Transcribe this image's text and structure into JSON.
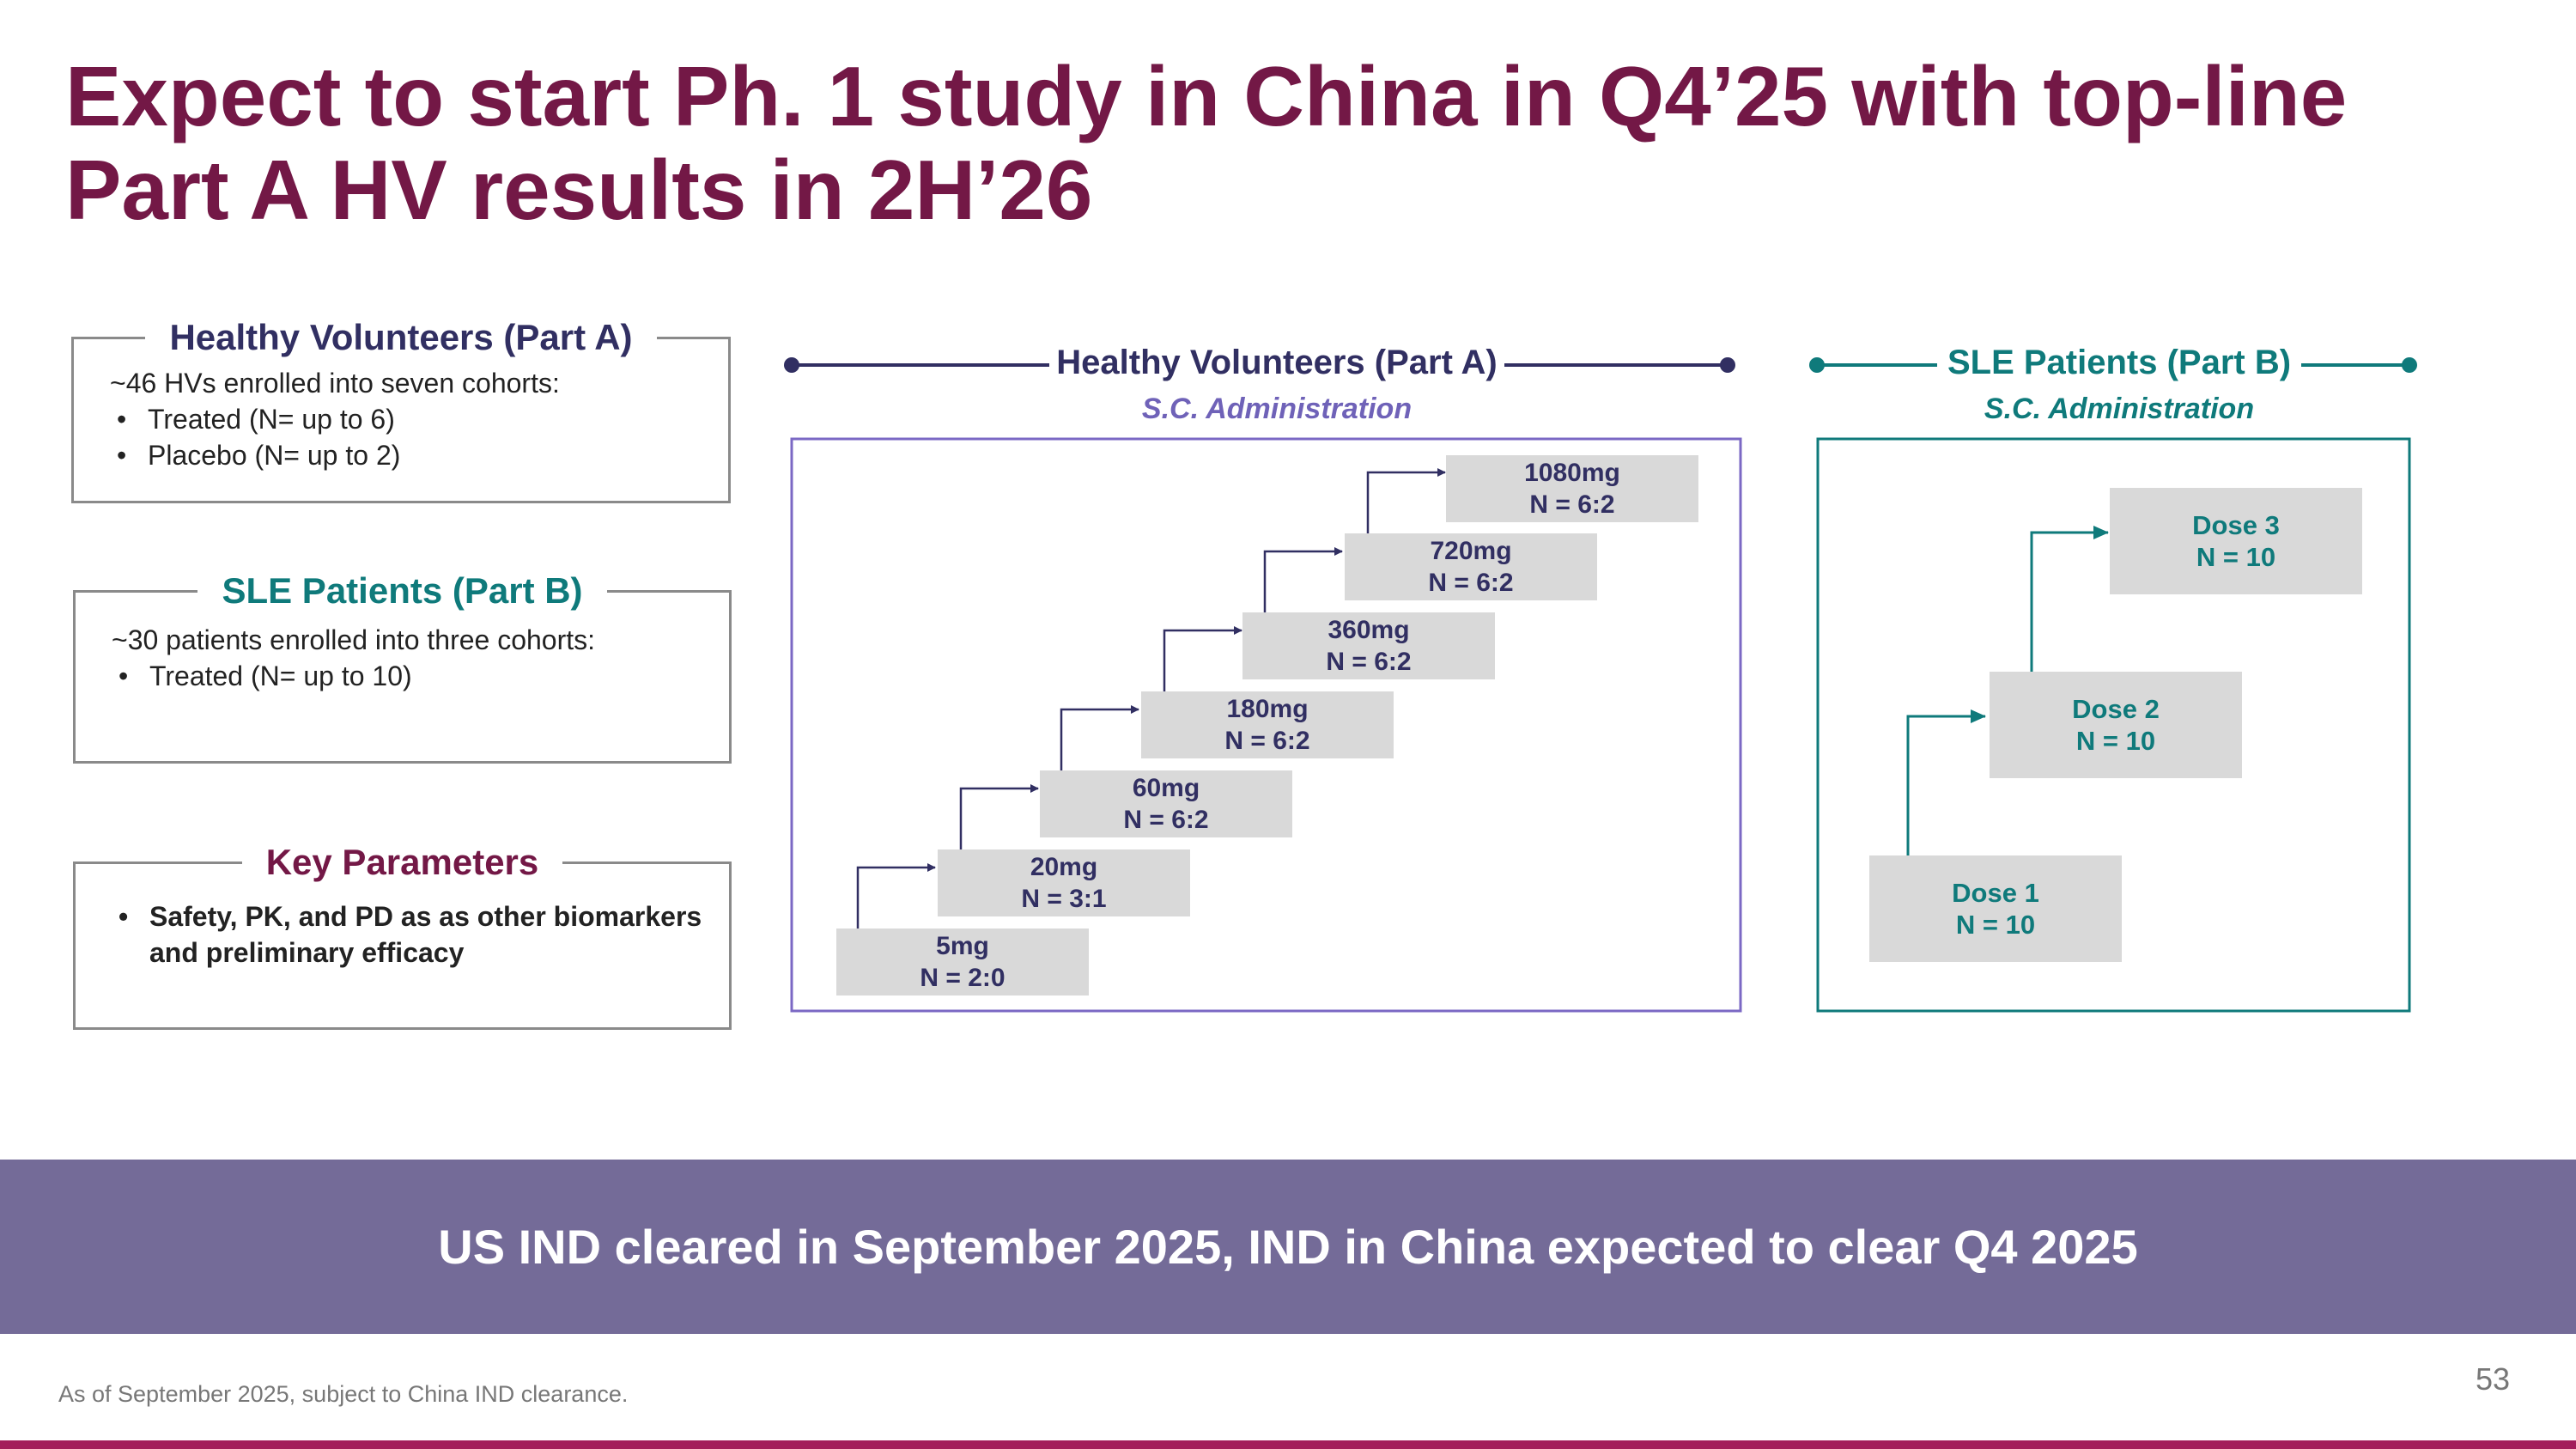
{
  "title": {
    "line1": "Expect to start Ph. 1 study in China in Q4’25 with top-line",
    "line2": "Part A HV results in 2H’26"
  },
  "left_panels": {
    "hv": {
      "heading": "Healthy Volunteers (Part A)",
      "intro": "~46 HVs enrolled into seven cohorts:",
      "bullets": [
        "Treated (N= up to 6)",
        "Placebo (N= up to 2)"
      ]
    },
    "sle": {
      "heading": "SLE Patients (Part B)",
      "intro": "~30 patients enrolled into three cohorts:",
      "bullets": [
        "Treated (N= up to 10)"
      ]
    },
    "key": {
      "heading": "Key Parameters",
      "bullets": [
        "Safety, PK, and PD as  as other biomarkers and preliminary efficacy"
      ]
    }
  },
  "diagram": {
    "hv": {
      "title": "Healthy Volunteers (Part A)",
      "subtitle": "S.C. Administration",
      "cohorts": [
        {
          "dose": "5mg",
          "n": "N = 2:0"
        },
        {
          "dose": "20mg",
          "n": "N = 3:1"
        },
        {
          "dose": "60mg",
          "n": "N = 6:2"
        },
        {
          "dose": "180mg",
          "n": "N = 6:2"
        },
        {
          "dose": "360mg",
          "n": "N = 6:2"
        },
        {
          "dose": "720mg",
          "n": "N = 6:2"
        },
        {
          "dose": "1080mg",
          "n": "N = 6:2"
        }
      ]
    },
    "sle": {
      "title": "SLE Patients (Part B)",
      "subtitle": "S.C. Administration",
      "cohorts": [
        {
          "dose": "Dose 1",
          "n": "N = 10"
        },
        {
          "dose": "Dose 2",
          "n": "N = 10"
        },
        {
          "dose": "Dose 3",
          "n": "N = 10"
        }
      ]
    }
  },
  "banner": "US IND cleared in September 2025, IND in China expected to clear Q4 2025",
  "footnote": "As of September 2025, subject to China IND clearance.",
  "page_number": "53",
  "colors": {
    "title": "#731846",
    "hv_navy": "#312f62",
    "hv_box": "#7b68c4",
    "hv_sub": "#6f62b8",
    "sle_teal": "#0f7a7b",
    "key_maroon": "#731846",
    "banner": "#746b98",
    "accent_bar": "#a31e5a"
  }
}
